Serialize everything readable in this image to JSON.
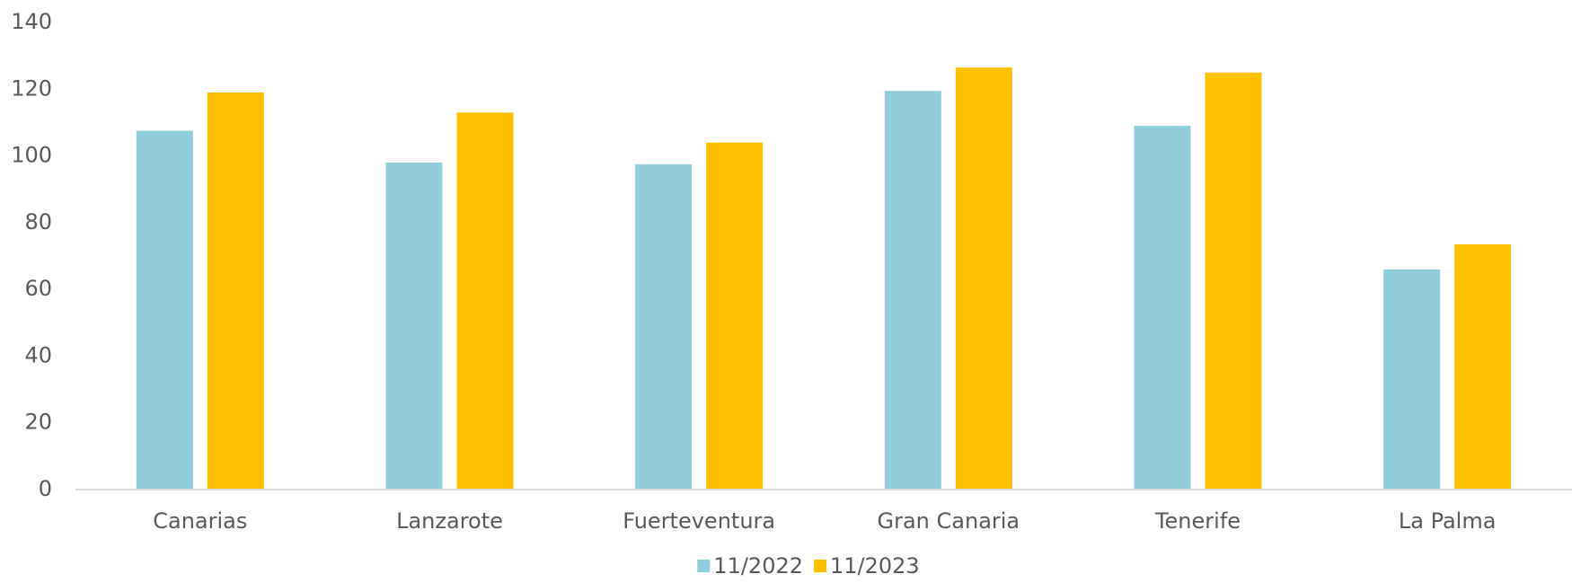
{
  "chart_data": {
    "type": "bar",
    "title": "",
    "xlabel": "",
    "ylabel": "",
    "categories": [
      "Canarias",
      "Lanzarote",
      "Fuerteventura",
      "Gran Canaria",
      "Tenerife",
      "La Palma"
    ],
    "series": [
      {
        "name": "11/2022",
        "color": "#92CDDC",
        "values": [
          107.5,
          98,
          97.5,
          119.5,
          109,
          66
        ]
      },
      {
        "name": "11/2023",
        "color": "#FFC000",
        "values": [
          119,
          113,
          104,
          126.5,
          125,
          73.5
        ]
      }
    ],
    "ylim": [
      0,
      140
    ],
    "yticks": [
      "0",
      "20",
      "40",
      "60",
      "80",
      "100",
      "120",
      "140"
    ],
    "grid": false,
    "legend_position": "bottom"
  }
}
